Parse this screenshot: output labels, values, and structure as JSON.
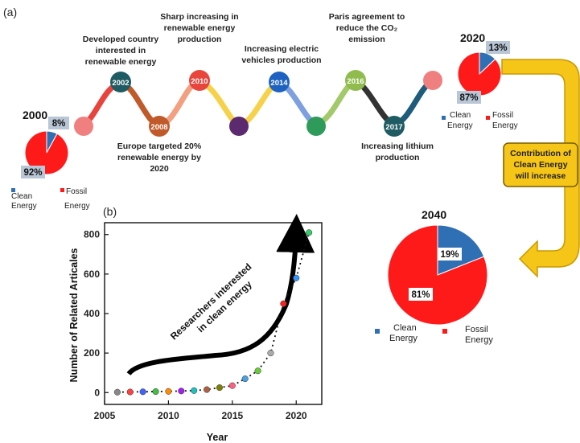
{
  "panel_labels": {
    "a": "(a)",
    "b": "(b)"
  },
  "timeline": {
    "events": [
      {
        "year": "2002",
        "text": [
          "Developed country",
          "interested in",
          "renewable energy"
        ],
        "color": "#1f5b63"
      },
      {
        "year": "2008",
        "text": [
          "Europe targeted 20%",
          "renewable energy by",
          "2020"
        ],
        "color": "#c05a2a"
      },
      {
        "year": "2010",
        "text": [
          "Sharp increasing in",
          "renewable energy",
          "production"
        ],
        "color": "#e8453c"
      },
      {
        "year": "2014",
        "text": [
          "Increasing electric",
          "vehicles production"
        ],
        "color": "#1d62c0"
      },
      {
        "year": "2016",
        "text": [
          "Paris agreement to",
          "reduce the CO₂",
          "emission"
        ],
        "color": "#8fbc4c"
      },
      {
        "year": "2017",
        "text": [
          "Increasing lithium",
          "production"
        ],
        "color": "#1f5b63"
      }
    ],
    "unlabeled_node_colors": [
      "#f08080",
      "#5c2a6e",
      "#2e9b5a",
      "#f07f7f"
    ]
  },
  "pies": [
    {
      "year": "2000",
      "slices": [
        {
          "label": "Clean Energy",
          "value": 8,
          "display": "8%",
          "color": "#2f6fb3"
        },
        {
          "label": "Fossil Energy",
          "value": 92,
          "display": "92%",
          "color": "#ff1a1a"
        }
      ]
    },
    {
      "year": "2020",
      "slices": [
        {
          "label": "Clean Energy",
          "value": 13,
          "display": "13%",
          "color": "#2f6fb3"
        },
        {
          "label": "Fossil Energy",
          "value": 87,
          "display": "87%",
          "color": "#ff1a1a"
        }
      ]
    },
    {
      "year": "2040",
      "slices": [
        {
          "label": "Clean Energy",
          "value": 19,
          "display": "19%",
          "color": "#2f6fb3"
        },
        {
          "label": "Fossil Energy",
          "value": 81,
          "display": "81%",
          "color": "#ff1a1a"
        }
      ]
    }
  ],
  "legend": {
    "clean": [
      "Clean",
      "Energy"
    ],
    "fossil": [
      "Fossil",
      "Energy"
    ]
  },
  "callout": [
    "Contribution of",
    "Clean Energy",
    "will increase"
  ],
  "chart_data": {
    "type": "scatter",
    "xlabel": "Year",
    "ylabel": "Number of Related Articales",
    "xlim": [
      2005,
      2022
    ],
    "ylim": [
      -60,
      860
    ],
    "xticks": [
      2005,
      2010,
      2015,
      2020
    ],
    "yticks": [
      0,
      200,
      400,
      600,
      800
    ],
    "grid": false,
    "trend_line": "dotted",
    "annotation": [
      "Researchers interested",
      "in clean energy"
    ],
    "series": [
      {
        "x": [
          2006,
          2007,
          2008,
          2009,
          2010,
          2011,
          2012,
          2013,
          2014,
          2015,
          2016,
          2017,
          2018,
          2019,
          2020,
          2021
        ],
        "y": [
          2,
          3,
          4,
          5,
          6,
          8,
          10,
          15,
          25,
          35,
          70,
          110,
          200,
          450,
          580,
          810
        ],
        "colors": [
          "#888888",
          "#ff4040",
          "#4060ff",
          "#40c040",
          "#ff8c00",
          "#a020f0",
          "#20c0c0",
          "#b06040",
          "#808000",
          "#ff6080",
          "#4aa0e0",
          "#66cc33",
          "#aaaaaa",
          "#ff2020",
          "#3399ff",
          "#33cc66"
        ]
      }
    ]
  }
}
